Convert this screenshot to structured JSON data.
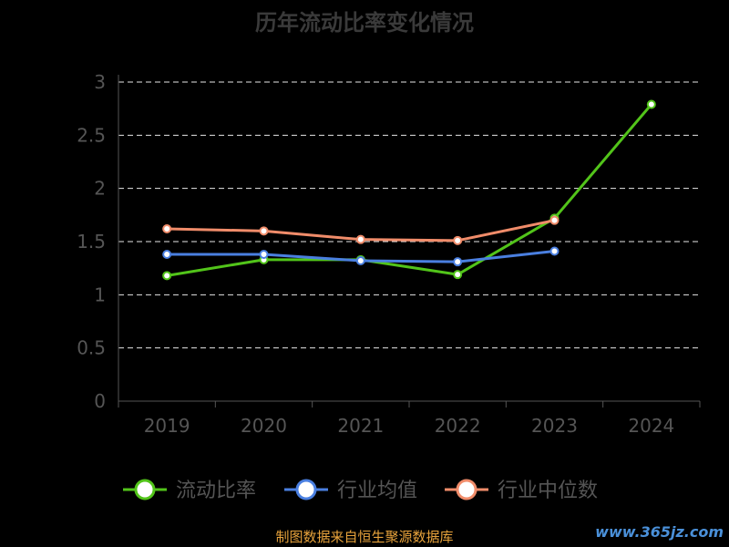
{
  "chart_data": {
    "type": "line",
    "title": "历年流动比率变化情况",
    "categories": [
      "2019",
      "2020",
      "2021",
      "2022",
      "2023",
      "2024"
    ],
    "ylim": [
      0,
      3
    ],
    "yticks": [
      "0",
      "0.5",
      "1",
      "1.5",
      "2",
      "2.5",
      "3"
    ],
    "grid": true,
    "legend_position": "bottom",
    "series": [
      {
        "name": "流动比率",
        "color": "#52c41a",
        "values": [
          1.18,
          1.33,
          1.33,
          1.19,
          1.72,
          2.79
        ]
      },
      {
        "name": "行业均值",
        "color": "#4a7fe0",
        "values": [
          1.38,
          1.38,
          1.32,
          1.31,
          1.41,
          null
        ]
      },
      {
        "name": "行业中位数",
        "color": "#f08c6a",
        "values": [
          1.62,
          1.6,
          1.52,
          1.51,
          1.7,
          null
        ]
      }
    ]
  },
  "footer": {
    "source_text": "制图数据来自恒生聚源数据库"
  },
  "watermark": {
    "text": "www.365jz.com"
  }
}
